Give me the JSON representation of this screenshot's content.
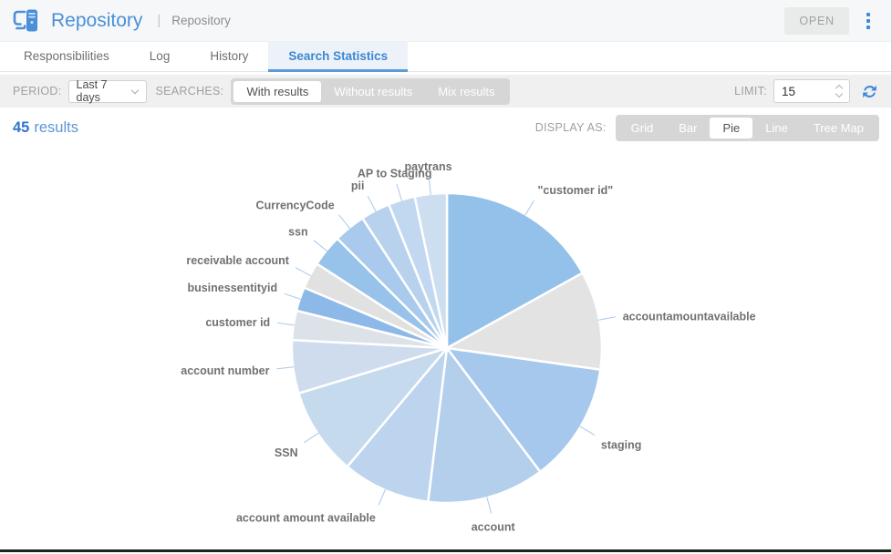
{
  "header": {
    "title": "Repository",
    "separator": "|",
    "subtitle": "Repository",
    "open_label": "OPEN"
  },
  "icons": {
    "app": "monitor-server",
    "menu": "kebab-vertical-dots",
    "period_chevron": "chevron-down",
    "limit_stepper": "up-down-chevrons",
    "refresh": "circular-refresh-arrows"
  },
  "tabs": [
    {
      "label": "Responsibilities",
      "active": false
    },
    {
      "label": "Log",
      "active": false
    },
    {
      "label": "History",
      "active": false
    },
    {
      "label": "Search Statistics",
      "active": true
    }
  ],
  "filters": {
    "period_label": "PERIOD:",
    "period_value": "Last 7 days",
    "searches_label": "SEARCHES:",
    "search_options": [
      {
        "label": "With results",
        "active": true
      },
      {
        "label": "Without results",
        "active": false
      },
      {
        "label": "Mix results",
        "active": false
      }
    ],
    "limit_label": "LIMIT:",
    "limit_value": "15"
  },
  "results": {
    "count": "45",
    "word": "results"
  },
  "display": {
    "label": "DISPLAY AS:",
    "options": [
      {
        "label": "Grid",
        "active": false
      },
      {
        "label": "Bar",
        "active": false
      },
      {
        "label": "Pie",
        "active": true
      },
      {
        "label": "Line",
        "active": false
      },
      {
        "label": "Tree Map",
        "active": false
      }
    ]
  },
  "colors": {
    "accent_blue": "#4a90d9",
    "active_tab_text": "#3b87d3",
    "label_gray": "#717171",
    "leader_line": "#aac9e8",
    "dark_bottom_edge": "#21241c"
  },
  "chart_data": {
    "type": "pie",
    "title": "",
    "legend": "none",
    "value_unit": "degrees-of-arc (clockwise from 12 o'clock)",
    "slices": [
      {
        "label": "\"customer id\"",
        "angle_deg": 61,
        "color": "#93c1ea"
      },
      {
        "label": "accountamountavailable",
        "angle_deg": 37,
        "color": "#e3e3e3"
      },
      {
        "label": "staging",
        "angle_deg": 45,
        "color": "#a5c8ec"
      },
      {
        "label": "account",
        "angle_deg": 44,
        "color": "#b3cfec"
      },
      {
        "label": "account amount available",
        "angle_deg": 33,
        "color": "#bcd4ee"
      },
      {
        "label": "SSN",
        "angle_deg": 33,
        "color": "#c6daee"
      },
      {
        "label": "account number",
        "angle_deg": 20,
        "color": "#cfdcee"
      },
      {
        "label": "customer id",
        "angle_deg": 11,
        "color": "#dde1e8"
      },
      {
        "label": "businessentityid",
        "angle_deg": 9,
        "color": "#8db9e8"
      },
      {
        "label": "receivable account",
        "angle_deg": 10,
        "color": "#e1e1e1"
      },
      {
        "label": "ssn",
        "angle_deg": 12,
        "color": "#97c2ea"
      },
      {
        "label": "CurrencyCode",
        "angle_deg": 12,
        "color": "#a9caec"
      },
      {
        "label": "pii",
        "angle_deg": 11,
        "color": "#b8d2ee"
      },
      {
        "label": "AP to Staging",
        "angle_deg": 10,
        "color": "#c2d8f0"
      },
      {
        "label": "paytrans",
        "angle_deg": 12,
        "color": "#ccdef0"
      }
    ]
  }
}
